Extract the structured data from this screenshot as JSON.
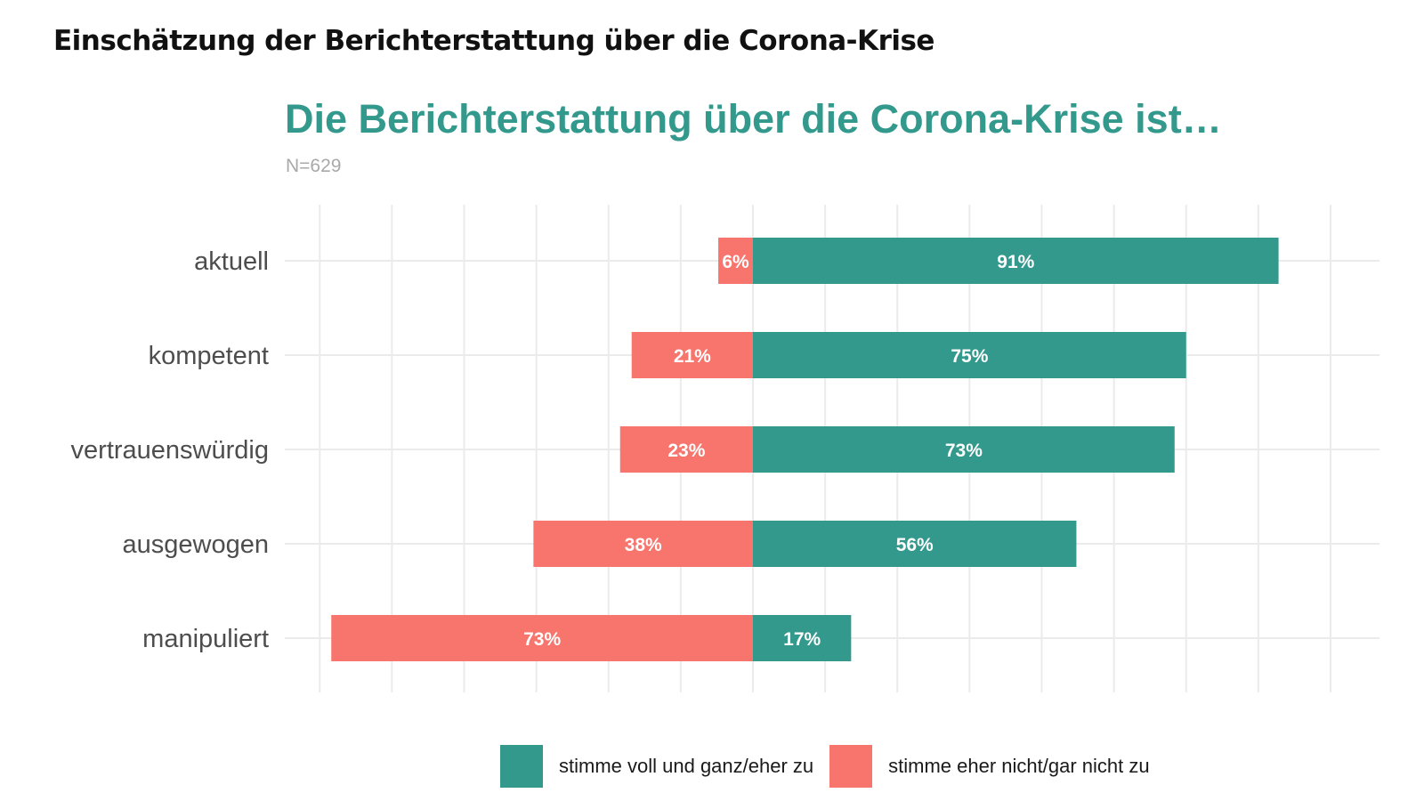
{
  "heading": "Einschätzung der Berichterstattung über die Corona-Krise",
  "colors": {
    "agree": "#33998c",
    "disagree": "#f7756d",
    "grid": "#ebebeb"
  },
  "chart_data": {
    "type": "bar",
    "orientation": "horizontal-diverging",
    "title": "Die Berichterstattung über die Corona-Krise ist…",
    "subtitle": "N=629",
    "categories": [
      "aktuell",
      "kompetent",
      "vertrauenswürdig",
      "ausgewogen",
      "manipuliert"
    ],
    "series": [
      {
        "name": "stimme voll und ganz/eher zu",
        "color": "#33998c",
        "values": [
          91,
          75,
          73,
          56,
          17
        ],
        "labels": [
          "91%",
          "75%",
          "73%",
          "56%",
          "17%"
        ]
      },
      {
        "name": "stimme eher nicht/gar nicht zu",
        "color": "#f7756d",
        "values": [
          6,
          21,
          23,
          38,
          73
        ],
        "labels": [
          "6%",
          "21%",
          "23%",
          "38%",
          "73%"
        ]
      }
    ],
    "xlim": [
      -75,
      100
    ],
    "grid": true,
    "legend_position": "bottom"
  }
}
